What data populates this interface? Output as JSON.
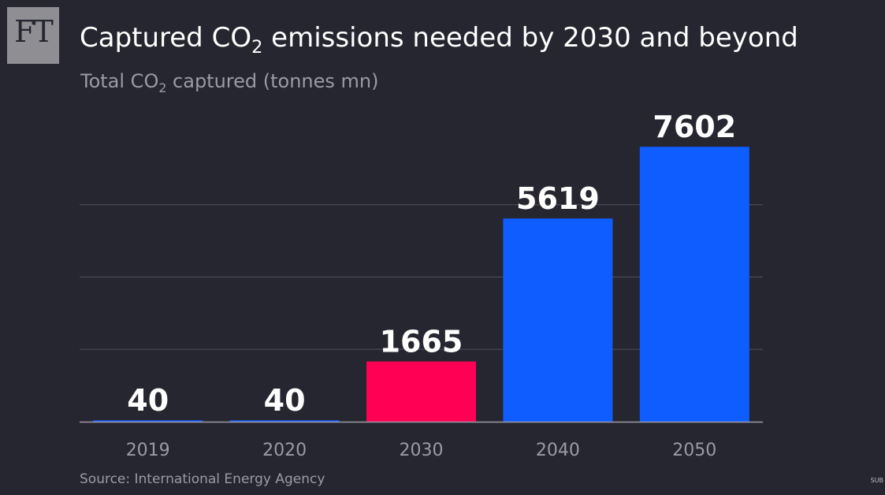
{
  "logo": {
    "text": "FT"
  },
  "title": {
    "pre": "Captured CO",
    "sub": "2",
    "post": " emissions needed by 2030 and beyond"
  },
  "subtitle": {
    "pre": "Total CO",
    "sub": "2",
    "post": " captured (tonnes mn)"
  },
  "source": "Source: International Energy Agency",
  "corner_text": "SUB",
  "colors": {
    "background": "#262630",
    "bar_default": "#0f5cff",
    "bar_highlight": "#ff0055",
    "grid": "#4a4a55",
    "axis": "#9b9aa6",
    "value_label": "#ffffff",
    "tick_label": "#9b9aa6"
  },
  "chart_data": {
    "type": "bar",
    "categories": [
      "2019",
      "2020",
      "2030",
      "2040",
      "2050"
    ],
    "values": [
      40,
      40,
      1665,
      5619,
      7602
    ],
    "value_labels": [
      "40",
      "40",
      "1665",
      "5619",
      "7602"
    ],
    "highlight_index": 2,
    "title": "Captured CO2 emissions needed by 2030 and beyond",
    "ylabel": "Total CO2 captured (tonnes mn)",
    "xlabel": "",
    "ylim": [
      0,
      8000
    ],
    "grid": true,
    "legend": "none"
  }
}
